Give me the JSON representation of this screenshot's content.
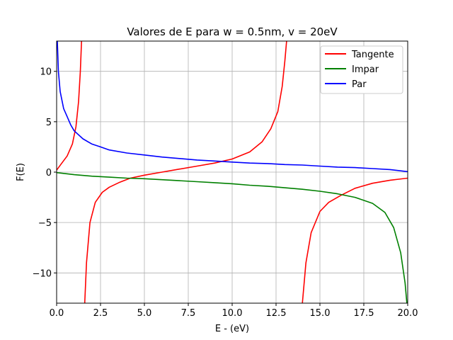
{
  "chart_data": {
    "type": "line",
    "title": "Valores de E para w = 0.5nm, v = 20eV",
    "xlabel": "E - (eV)",
    "ylabel": "F(E)",
    "xlim": [
      0,
      20
    ],
    "ylim": [
      -13,
      13
    ],
    "x_ticks": [
      "0.0",
      "2.5",
      "5.0",
      "7.5",
      "10.0",
      "12.5",
      "15.0",
      "17.5",
      "20.0"
    ],
    "y_ticks": [
      "−10",
      "−5",
      "0",
      "5",
      "10"
    ],
    "x_tick_values": [
      0,
      2.5,
      5,
      7.5,
      10,
      12.5,
      15,
      17.5,
      20
    ],
    "y_tick_values": [
      -10,
      -5,
      0,
      5,
      10
    ],
    "grid": true,
    "legend_position": "top-right",
    "series": [
      {
        "name": "Tangente",
        "color": "#ff0000",
        "segments": [
          [
            [
              0.0,
              0.2
            ],
            [
              0.3,
              0.9
            ],
            [
              0.6,
              1.6
            ],
            [
              0.9,
              2.8
            ],
            [
              1.1,
              4.5
            ],
            [
              1.25,
              7.0
            ],
            [
              1.35,
              10.0
            ],
            [
              1.42,
              13.0
            ]
          ],
          [
            [
              1.6,
              -13.0
            ],
            [
              1.7,
              -9.0
            ],
            [
              1.9,
              -5.0
            ],
            [
              2.2,
              -3.0
            ],
            [
              2.6,
              -2.0
            ],
            [
              3.0,
              -1.5
            ],
            [
              3.6,
              -1.0
            ],
            [
              4.2,
              -0.6
            ],
            [
              5.0,
              -0.3
            ],
            [
              6.0,
              0.0
            ],
            [
              7.0,
              0.3
            ],
            [
              8.0,
              0.6
            ],
            [
              9.0,
              0.9
            ],
            [
              10.0,
              1.3
            ],
            [
              11.0,
              2.0
            ],
            [
              11.7,
              3.0
            ],
            [
              12.2,
              4.3
            ],
            [
              12.6,
              6.0
            ],
            [
              12.85,
              8.5
            ],
            [
              13.0,
              11.0
            ],
            [
              13.1,
              13.0
            ]
          ],
          [
            [
              14.0,
              -13.0
            ],
            [
              14.2,
              -9.0
            ],
            [
              14.5,
              -6.0
            ],
            [
              15.0,
              -3.9
            ],
            [
              15.5,
              -3.0
            ],
            [
              16.2,
              -2.3
            ],
            [
              17.0,
              -1.6
            ],
            [
              18.0,
              -1.1
            ],
            [
              19.0,
              -0.8
            ],
            [
              20.0,
              -0.6
            ]
          ]
        ]
      },
      {
        "name": "Impar",
        "color": "#008000",
        "segments": [
          [
            [
              0.0,
              -0.05
            ],
            [
              1.0,
              -0.25
            ],
            [
              2.0,
              -0.4
            ],
            [
              3.0,
              -0.5
            ],
            [
              4.0,
              -0.6
            ],
            [
              5.0,
              -0.65
            ],
            [
              6.0,
              -0.75
            ],
            [
              7.0,
              -0.85
            ],
            [
              8.0,
              -0.95
            ],
            [
              9.0,
              -1.05
            ],
            [
              10.0,
              -1.15
            ],
            [
              11.0,
              -1.3
            ],
            [
              12.0,
              -1.4
            ],
            [
              13.0,
              -1.55
            ],
            [
              14.0,
              -1.7
            ],
            [
              15.0,
              -1.9
            ],
            [
              16.0,
              -2.15
            ],
            [
              17.0,
              -2.5
            ],
            [
              18.0,
              -3.1
            ],
            [
              18.7,
              -4.0
            ],
            [
              19.2,
              -5.5
            ],
            [
              19.6,
              -8.0
            ],
            [
              19.85,
              -11.0
            ],
            [
              19.95,
              -13.0
            ]
          ]
        ]
      },
      {
        "name": "Par",
        "color": "#0000ff",
        "segments": [
          [
            [
              0.04,
              13.0
            ],
            [
              0.1,
              10.0
            ],
            [
              0.2,
              8.0
            ],
            [
              0.4,
              6.3
            ],
            [
              0.6,
              5.5
            ],
            [
              0.8,
              4.7
            ],
            [
              1.0,
              4.1
            ],
            [
              1.5,
              3.3
            ],
            [
              2.0,
              2.8
            ],
            [
              2.5,
              2.5
            ],
            [
              3.0,
              2.2
            ],
            [
              4.0,
              1.9
            ],
            [
              5.0,
              1.7
            ],
            [
              6.0,
              1.5
            ],
            [
              7.0,
              1.35
            ],
            [
              8.0,
              1.2
            ],
            [
              9.0,
              1.1
            ],
            [
              10.0,
              1.0
            ],
            [
              11.0,
              0.9
            ],
            [
              12.0,
              0.85
            ],
            [
              13.0,
              0.75
            ],
            [
              14.0,
              0.7
            ],
            [
              15.0,
              0.6
            ],
            [
              16.0,
              0.5
            ],
            [
              17.0,
              0.45
            ],
            [
              18.0,
              0.35
            ],
            [
              19.0,
              0.25
            ],
            [
              20.0,
              0.05
            ]
          ]
        ]
      }
    ]
  }
}
